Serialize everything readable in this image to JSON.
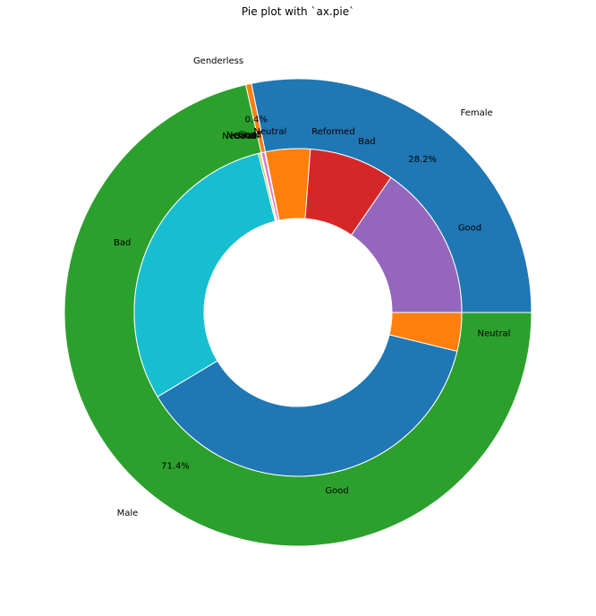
{
  "chart_data": {
    "type": "pie",
    "title": "Pie plot with `ax.pie`",
    "start_angle_deg": 0,
    "direction": "counterclockwise",
    "outer_ring": {
      "slices": [
        {
          "label": "Female",
          "value": 28.2,
          "color": "#1f77b4"
        },
        {
          "label": "Genderless",
          "value": 0.4,
          "color": "#ff7f0e"
        },
        {
          "label": "Male",
          "value": 71.4,
          "color": "#2ca02c"
        }
      ]
    },
    "inner_ring": {
      "slices": [
        {
          "label": "Good",
          "value": 15.4,
          "color": "#9467bd"
        },
        {
          "label": "Bad",
          "value": 8.4,
          "color": "#d62728"
        },
        {
          "label": "Reformed",
          "value": 0.0,
          "color": "#1f77b4"
        },
        {
          "label": "Neutral",
          "value": 4.4,
          "color": "#ff7f0e"
        },
        {
          "label": "Good",
          "value": 0.07,
          "color": "#8c564b"
        },
        {
          "label": "Neutral",
          "value": 0.33,
          "color": "#e377c2"
        },
        {
          "label": "Good",
          "value": 0.1,
          "color": "#7f7f7f"
        },
        {
          "label": "Neutral",
          "value": 0.2,
          "color": "#bcbd22"
        },
        {
          "label": "Bad",
          "value": 29.7,
          "color": "#17becf"
        },
        {
          "label": "Good",
          "value": 37.6,
          "color": "#1f77b4"
        },
        {
          "label": "Neutral",
          "value": 3.8,
          "color": "#ff7f0e"
        }
      ]
    },
    "autopct_labels": [
      "28.2%",
      "0.4%",
      "71.4%"
    ]
  }
}
